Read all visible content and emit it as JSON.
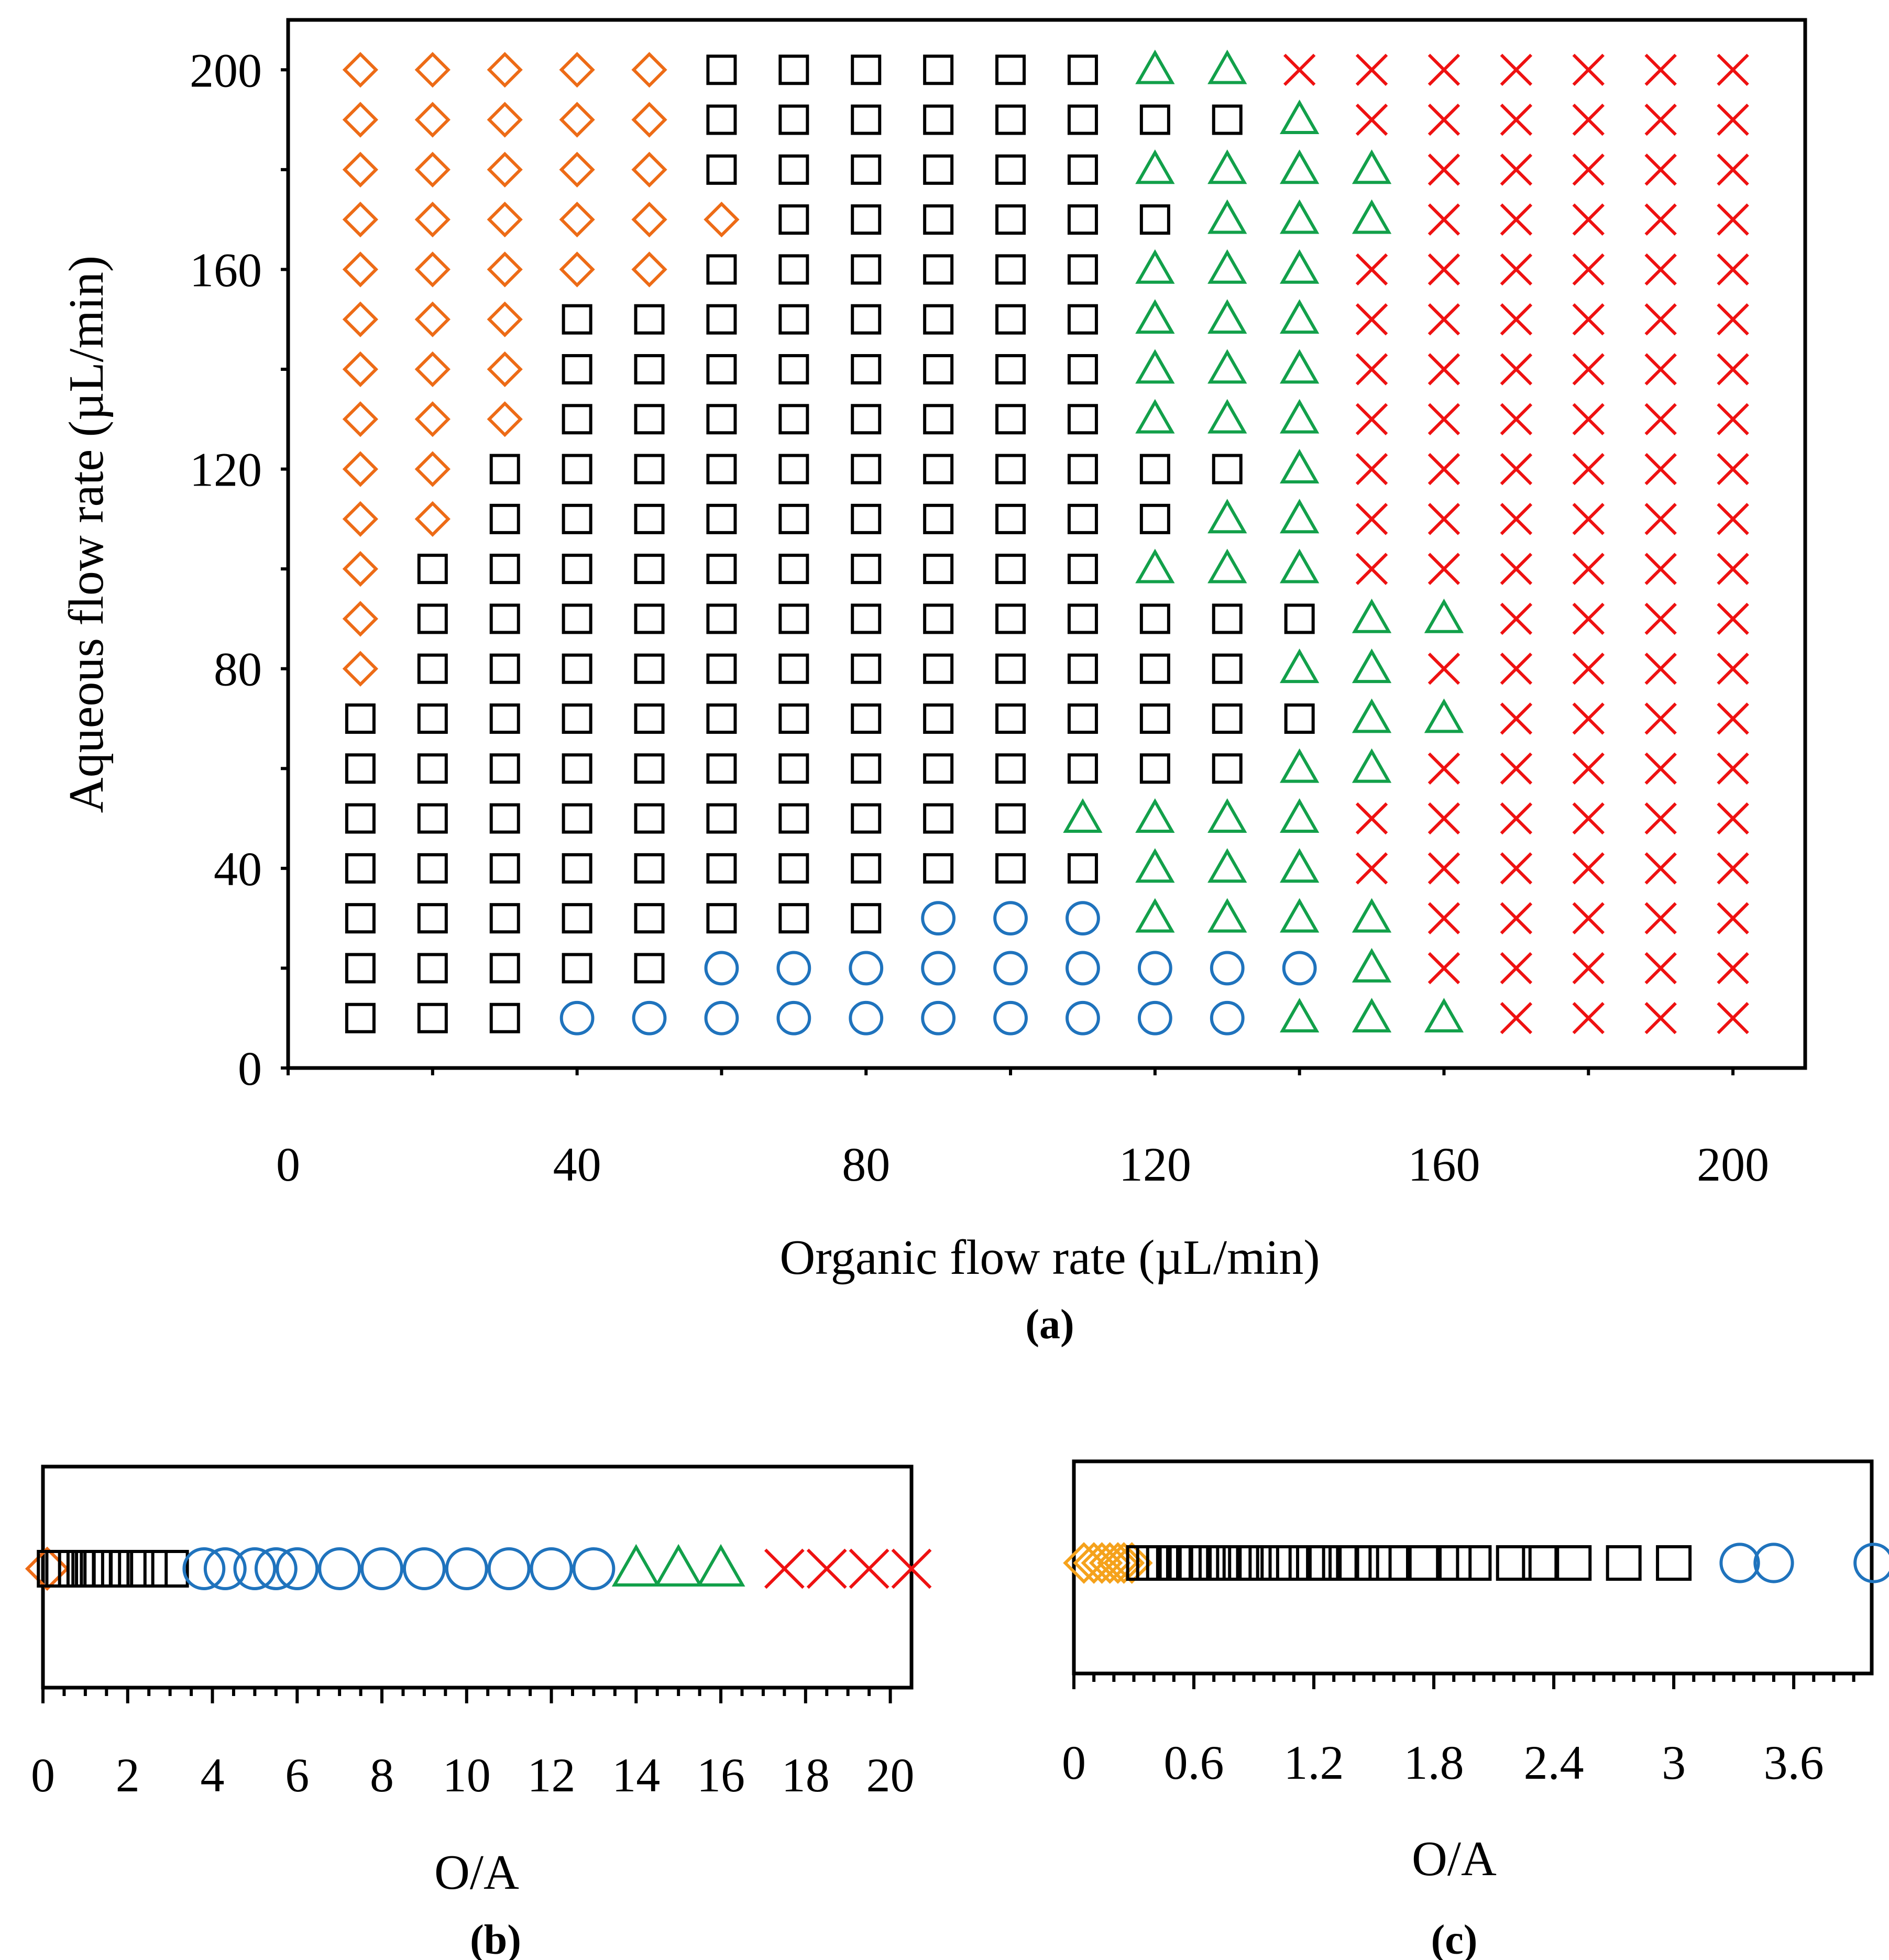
{
  "chart_data": [
    {
      "panel": "(a)",
      "type": "scatter",
      "xlabel": "Organic flow rate (µL/min)",
      "ylabel": "Aqueous flow rate (µL/min)",
      "xlim": [
        0,
        210
      ],
      "ylim": [
        0,
        210
      ],
      "xticks": [
        0,
        40,
        80,
        120,
        160,
        200
      ],
      "yticks": [
        0,
        40,
        80,
        120,
        160,
        200
      ],
      "x_minor_step": 20,
      "y_minor_step": 20,
      "grid": false,
      "colors": {
        "diamond": "#ed6b16",
        "square": "#000000",
        "circle": "#1f73bd",
        "triangle": "#12a04a",
        "cross": "#ee1111"
      },
      "x": [
        10,
        20,
        30,
        40,
        50,
        60,
        70,
        80,
        90,
        100,
        110,
        120,
        130,
        140,
        150,
        160,
        170,
        180,
        190,
        200
      ],
      "y": [
        10,
        20,
        30,
        40,
        50,
        60,
        70,
        80,
        90,
        100,
        110,
        120,
        130,
        140,
        150,
        160,
        170,
        180,
        190,
        200
      ],
      "legend_codes": {
        "D": "diamond",
        "S": "square",
        "O": "circle",
        "T": "triangle",
        "X": "cross"
      },
      "grid_rows_top_to_bottom": [
        "DDDDDSSSSSSTTXXXXXXX",
        "DDDDDSSSSSSSSTXXXXXX",
        "DDDDDSSSSSSTTTTXXXXX",
        "DDDDDDSSSSSSTTTXXXXX",
        "DDDDDSSSSSSTTTXXXXXX",
        "DDDSSSSSSSSTTTXXXXXX",
        "DDDSSSSSSSSTTTXXXXXX",
        "DDDSSSSSSSSTTTXXXXXX",
        "DDSSSSSSSSSSSTXXXXXX",
        "DDSSSSSSSSSSTTXXXXXX",
        "DSSSSSSSSSSTTTXXXXXX",
        "DSSSSSSSSSSSSSTTXXXX",
        "DSSSSSSSSSSSSTTXXXXX",
        "SSSSSSSSSSSSSSTTXXXX",
        "SSSSSSSSSSSSSTTXXXXX",
        "SSSSSSSSSSTTTTXXXXXX",
        "SSSSSSSSSSSTTTXXXXXX",
        "SSSSSSSSOOOTTTTXXXXX",
        "SSSSSOOOOOOOOOTXXXXX",
        "SSSOOOOOOOOOOTTTXXXX"
      ]
    },
    {
      "panel": "(b)",
      "type": "scatter",
      "xlabel": "O/A",
      "xlim": [
        0,
        20.5
      ],
      "xticks": [
        0,
        2,
        4,
        6,
        8,
        10,
        12,
        14,
        16,
        18,
        20
      ],
      "tick_labels": [
        "0",
        "2",
        "4",
        "6",
        "8",
        "10",
        "12",
        "14",
        "16",
        "18",
        "20"
      ],
      "x_minor_step": 0.5,
      "series": [
        {
          "name": "diamond",
          "color": "#ed6b16",
          "values": [
            0.1
          ]
        },
        {
          "name": "square",
          "color": "#000000",
          "values": [
            0.3,
            0.5,
            0.8,
            1.0,
            1.2,
            1.4,
            1.6,
            2.0,
            2.5,
            3.0
          ]
        },
        {
          "name": "circle",
          "color": "#1f73bd",
          "values": [
            3.8,
            4.3,
            5.0,
            5.5,
            6.0,
            7.0,
            8.0,
            9.0,
            10.0,
            11.0,
            12.0,
            13.0
          ]
        },
        {
          "name": "triangle",
          "color": "#12a04a",
          "values": [
            14.0,
            15.0,
            16.0
          ]
        },
        {
          "name": "cross",
          "color": "#ee1111",
          "values": [
            17.5,
            18.5,
            19.5,
            20.5
          ]
        }
      ]
    },
    {
      "panel": "(c)",
      "type": "scatter",
      "xlabel": "O/A",
      "xlim": [
        0,
        3.99
      ],
      "xticks": [
        0,
        0.6,
        1.2,
        1.8,
        2.4,
        3.0,
        3.6
      ],
      "tick_labels": [
        "0",
        "0.6",
        "1.2",
        "1.8",
        "2.4",
        "3",
        "3.6"
      ],
      "x_minor_step": 0.1,
      "series": [
        {
          "name": "diamond",
          "color": "#f5a21c",
          "values": [
            0.05,
            0.1,
            0.14,
            0.18,
            0.22,
            0.25,
            0.29
          ]
        },
        {
          "name": "square",
          "color": "#000000",
          "values": [
            0.35,
            0.4,
            0.45,
            0.5,
            0.55,
            0.6,
            0.67,
            0.75,
            0.8,
            0.86,
            0.9,
            1.0,
            1.1,
            1.2,
            1.25,
            1.33,
            1.4,
            1.5,
            1.6,
            1.75,
            1.9,
            2.0,
            2.2,
            2.33,
            2.5,
            2.75,
            3.0
          ]
        },
        {
          "name": "circle",
          "color": "#1f73bd",
          "values": [
            3.33,
            3.5,
            4.0
          ]
        }
      ]
    }
  ]
}
